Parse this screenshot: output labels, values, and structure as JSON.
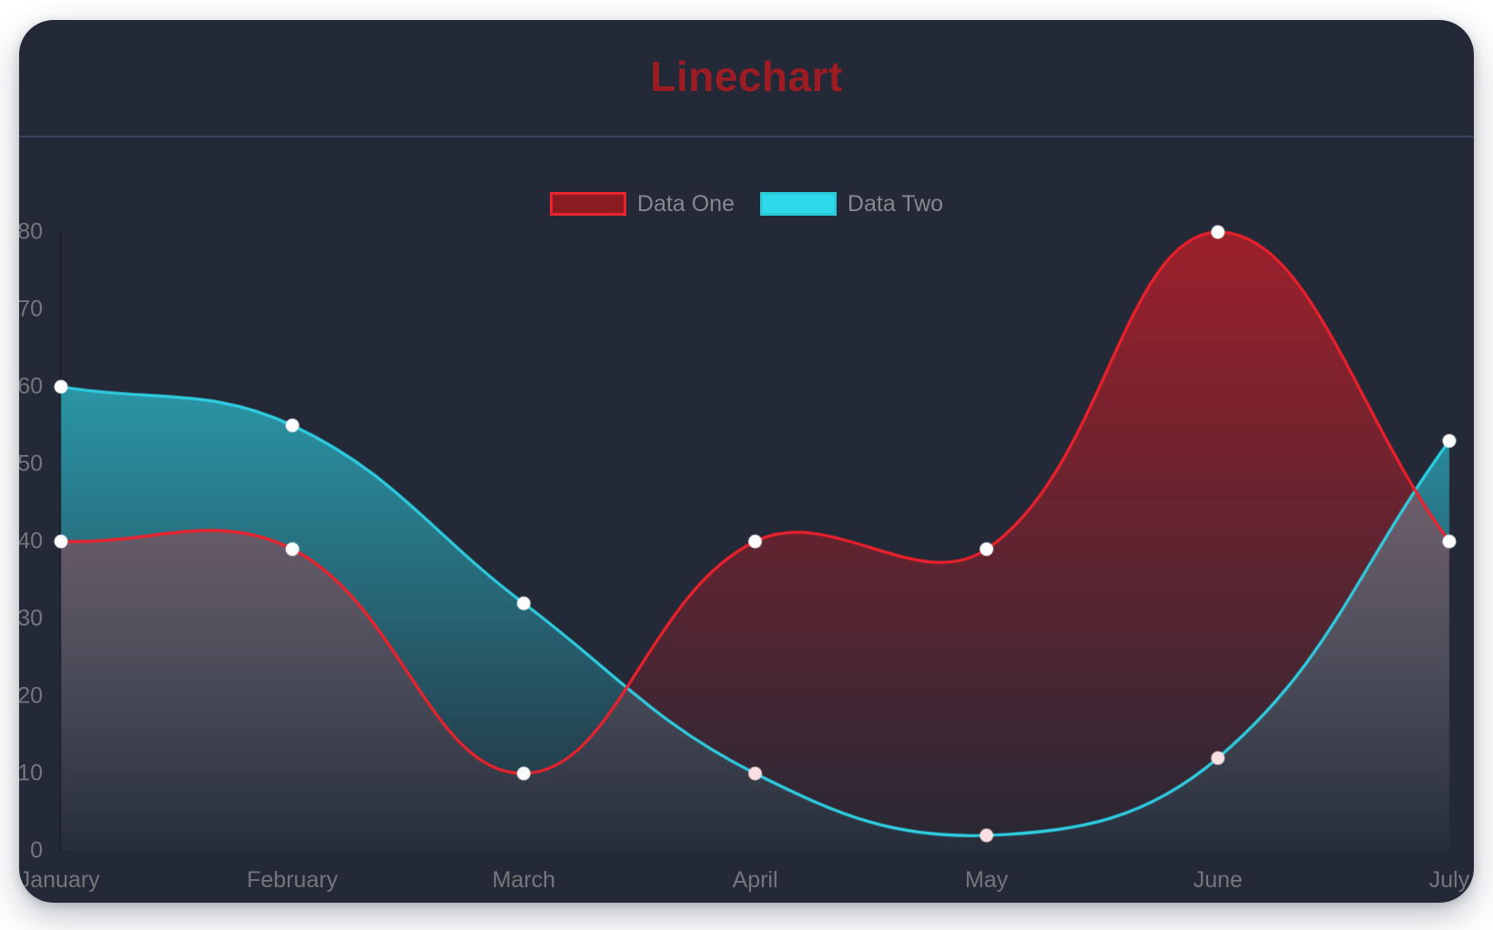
{
  "page": {
    "background": "#ffffff"
  },
  "card": {
    "background": "#232936"
  },
  "header": {
    "title": "Linechart",
    "title_color": "#9c1c24",
    "divider_color": "#3a425e"
  },
  "legend": {
    "text_color": "#85888f",
    "items": [
      {
        "label": "Data One",
        "swatch_fill": "#8a1b20",
        "swatch_border": "#e9242e"
      },
      {
        "label": "Data Two",
        "swatch_fill": "#2ed9ea",
        "swatch_border": "#2bc9dc"
      }
    ]
  },
  "chart_data": {
    "type": "line",
    "title": "Linechart",
    "categories": [
      "January",
      "February",
      "March",
      "April",
      "May",
      "June",
      "July"
    ],
    "series": [
      {
        "name": "Data One",
        "values": [
          40,
          39,
          10,
          40,
          39,
          80,
          40
        ],
        "line_color": "#f0212c",
        "fill_top": "rgba(255,26,35,0.55)",
        "fill_bottom": "rgba(255,26,35,0.02)",
        "point_colors": [
          "#ffffff",
          "#ffffff",
          "#ffffff",
          "#ffffff",
          "#ffffff",
          "#ffffff",
          "#ffffff"
        ]
      },
      {
        "name": "Data Two",
        "values": [
          60,
          55,
          32,
          10,
          2,
          12,
          53
        ],
        "line_color": "#2fd0e4",
        "fill_top": "rgba(47,210,228,0.85)",
        "fill_bottom": "rgba(47,210,228,0.03)",
        "point_colors": [
          "#ffffff",
          "#ffffff",
          "#ffffff",
          "#fbdfe3",
          "#fbdfe3",
          "#fbdfe3",
          "#ffffff"
        ]
      }
    ],
    "ylim": [
      0,
      80
    ],
    "yticks": [
      0,
      10,
      20,
      30,
      40,
      50,
      60,
      70,
      80
    ],
    "xlabel": "",
    "ylabel": "",
    "grid": false,
    "legend_position": "top",
    "axis_label_color": "#73767c",
    "axis_line_color": "rgba(16,20,28,0.55)",
    "curve_tension": 0.4,
    "point_radius": 7.5,
    "line_width": 3.2
  }
}
